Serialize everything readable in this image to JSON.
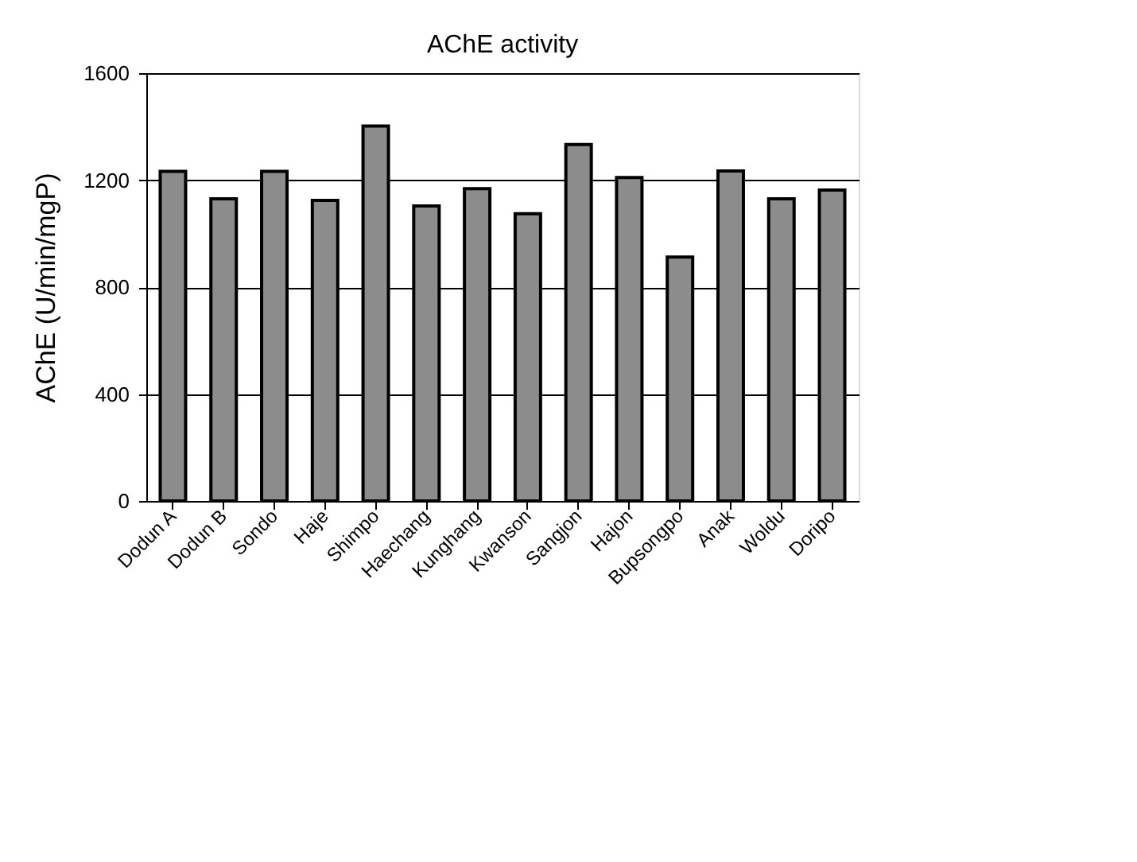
{
  "chart_data": {
    "type": "bar",
    "title": "AChE activity",
    "ylabel": "AChE (U/min/mgP)",
    "categories": [
      "Dodun A",
      "Dodun B",
      "Sondo",
      "Haje",
      "Shimpo",
      "Haechang",
      "Kunghang",
      "Kwanson",
      "Sangjon",
      "Hajon",
      "Bupsongpo",
      "Anak",
      "Woldu",
      "Doripo"
    ],
    "values": [
      1233,
      1130,
      1233,
      1124,
      1402,
      1103,
      1168,
      1074,
      1333,
      1210,
      912,
      1234,
      1130,
      1163
    ],
    "color": "#8c8c8c",
    "ylim": [
      0,
      1600
    ],
    "yticks": [
      0,
      400,
      800,
      1200,
      1600
    ],
    "grid": "y"
  }
}
